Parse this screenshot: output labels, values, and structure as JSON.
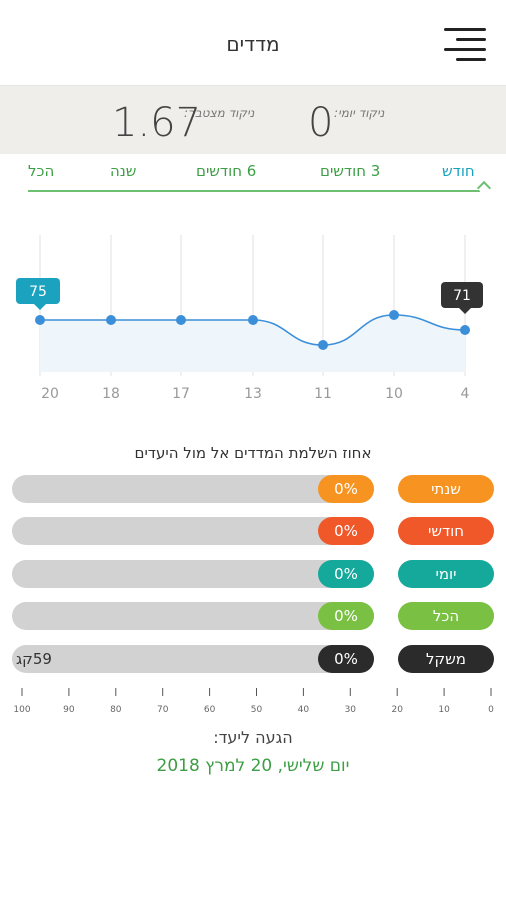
{
  "header": {
    "title": "מדדים"
  },
  "scores": {
    "cumulative_label": "ניקוד מצטבר:",
    "cumulative_value": "1.67",
    "daily_label": "ניקוד יומי:",
    "daily_value": "0"
  },
  "tabs": [
    {
      "label": "הכל"
    },
    {
      "label": "שנה"
    },
    {
      "label": "6 חודשים"
    },
    {
      "label": "3 חודשים"
    },
    {
      "label": "חודש",
      "active": true
    }
  ],
  "chart_data": {
    "type": "area",
    "x": [
      "20",
      "18",
      "17",
      "13",
      "11",
      "10",
      "4"
    ],
    "values": [
      75,
      75,
      75,
      75,
      72.5,
      75.5,
      74
    ],
    "callouts": [
      {
        "label": "75",
        "color": "#1aa2bf"
      },
      {
        "label": "71",
        "color": "#333333"
      }
    ],
    "grid": true,
    "colors": {
      "line": "#3b8fd9",
      "fill": "#eef6fb"
    }
  },
  "goals": {
    "title": "אחוז השלמת המדדים אל מול היעדים",
    "rows": [
      {
        "tag": "שנתי",
        "percent": "0%",
        "color": "#f79421",
        "extra": ""
      },
      {
        "tag": "חודשי",
        "percent": "0%",
        "color": "#f0582a",
        "extra": ""
      },
      {
        "tag": "יומי",
        "percent": "0%",
        "color": "#14a99a",
        "extra": ""
      },
      {
        "tag": "הכל",
        "percent": "0%",
        "color": "#7ac143",
        "extra": ""
      },
      {
        "tag": "משקל",
        "percent": "0%",
        "color": "#2b2b2b",
        "extra": "59קג"
      }
    ],
    "scale_labels": [
      "100",
      "90",
      "80",
      "70",
      "60",
      "50",
      "40",
      "30",
      "20",
      "10",
      "0"
    ]
  },
  "target": {
    "label": "הגעה ליעד:",
    "date": "יום שלישי, 20 למרץ 2018"
  }
}
